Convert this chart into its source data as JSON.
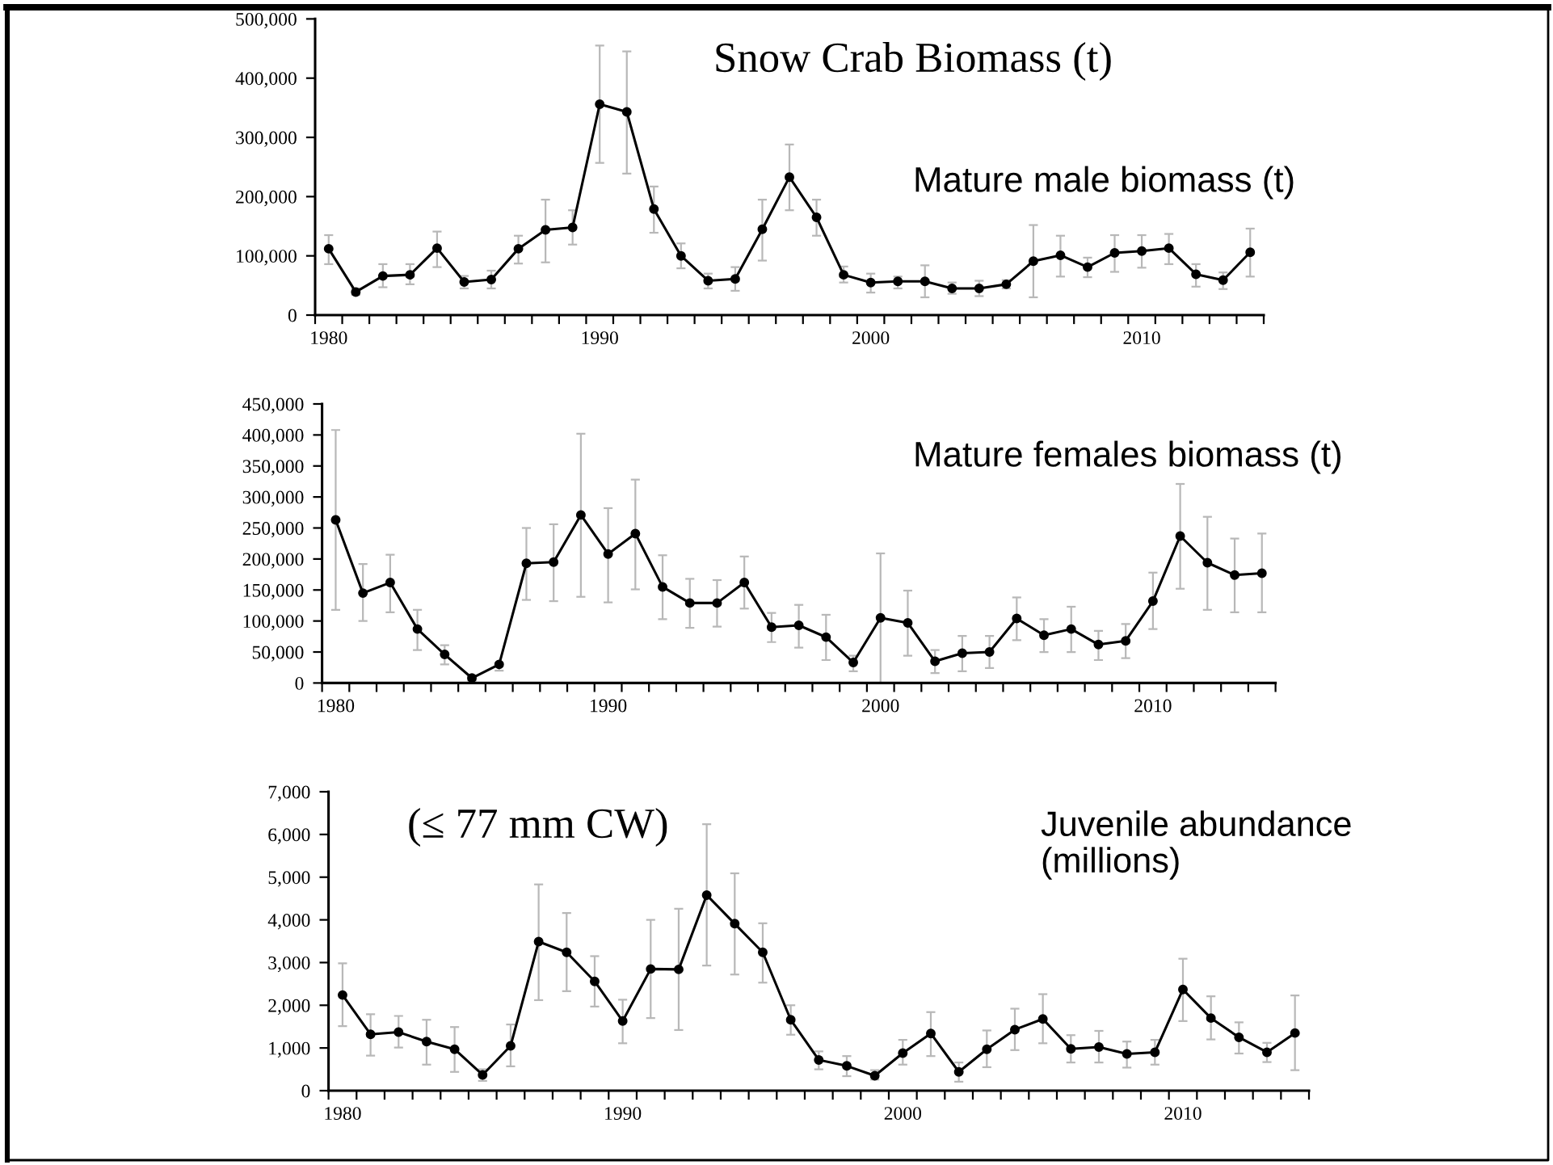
{
  "chart_data": [
    {
      "type": "line",
      "title": "Snow Crab Biomass (t)",
      "subtitle": "Mature male biomass (t)",
      "categories": [
        "1980",
        null,
        null,
        null,
        null,
        null,
        null,
        null,
        null,
        null,
        "1990",
        null,
        null,
        null,
        null,
        null,
        null,
        null,
        null,
        null,
        "2000",
        null,
        null,
        null,
        null,
        null,
        null,
        null,
        null,
        null,
        "2010",
        null,
        null,
        null,
        null
      ],
      "series": [
        {
          "color": "#000000",
          "values": [
            112000,
            39000,
            66000,
            68000,
            113000,
            56000,
            60000,
            112000,
            144000,
            148000,
            356000,
            343000,
            179000,
            100000,
            58000,
            61000,
            145000,
            233000,
            165000,
            68000,
            55000,
            57000,
            57000,
            45000,
            45000,
            52000,
            91000,
            101000,
            81000,
            105000,
            108000,
            113000,
            69000,
            59000,
            106000
          ],
          "errors": [
            [
              86000,
              135000
            ],
            [
              34000,
              45000
            ],
            [
              47000,
              86000
            ],
            [
              52000,
              86000
            ],
            [
              81000,
              141000
            ],
            [
              45000,
              66000
            ],
            [
              45000,
              75000
            ],
            [
              87000,
              134000
            ],
            [
              89000,
              195000
            ],
            [
              119000,
              177000
            ],
            [
              257000,
              455000
            ],
            [
              239000,
              445000
            ],
            [
              139000,
              217000
            ],
            [
              79000,
              121000
            ],
            [
              45000,
              70000
            ],
            [
              41000,
              81000
            ],
            [
              92000,
              195000
            ],
            [
              177000,
              288000
            ],
            [
              134000,
              195000
            ],
            [
              55000,
              82000
            ],
            [
              38000,
              70000
            ],
            [
              45000,
              65000
            ],
            [
              30000,
              84000
            ],
            [
              36000,
              55000
            ],
            [
              32000,
              58000
            ],
            [
              45000,
              59000
            ],
            [
              30000,
              152000
            ],
            [
              65000,
              134000
            ],
            [
              64000,
              97000
            ],
            [
              73000,
              135000
            ],
            [
              80000,
              135000
            ],
            [
              86000,
              137000
            ],
            [
              48000,
              86000
            ],
            [
              44000,
              72000
            ],
            [
              65000,
              146000
            ]
          ]
        }
      ],
      "ylim": [
        0,
        500000
      ],
      "yticks": [
        0,
        {
          "value": 100000,
          "label": "100,000"
        },
        {
          "value": 200000,
          "label": "200,000"
        },
        {
          "value": 300000,
          "label": "300,000"
        },
        {
          "value": 400000,
          "label": "400,000"
        },
        {
          "value": 500000,
          "label": "500,000"
        }
      ],
      "marker": "circle",
      "line_style": "solid"
    },
    {
      "type": "line",
      "title": "Mature females biomass (t)",
      "categories": [
        "1980",
        null,
        null,
        null,
        null,
        null,
        null,
        null,
        null,
        null,
        "1990",
        null,
        null,
        null,
        null,
        null,
        null,
        null,
        null,
        null,
        "2000",
        null,
        null,
        null,
        null,
        null,
        null,
        null,
        null,
        null,
        "2010",
        null,
        null,
        null,
        null
      ],
      "series": [
        {
          "color": "#000000",
          "values": [
            263000,
            145000,
            162000,
            87000,
            46000,
            8000,
            30000,
            193000,
            195000,
            271000,
            208000,
            241000,
            155000,
            129000,
            129000,
            162000,
            90000,
            93000,
            74000,
            33000,
            105000,
            97000,
            35000,
            48000,
            50000,
            104000,
            77000,
            87000,
            62000,
            68000,
            132000,
            237000,
            194000,
            174000,
            177000
          ],
          "errors": [
            [
              118000,
              408000
            ],
            [
              100000,
              192000
            ],
            [
              114000,
              207000
            ],
            [
              53000,
              118000
            ],
            [
              30000,
              61000
            ],
            [
              4000,
              12000
            ],
            [
              20000,
              33000
            ],
            [
              134000,
              250000
            ],
            [
              132000,
              256000
            ],
            [
              139000,
              402000
            ],
            [
              130000,
              282000
            ],
            [
              151000,
              328000
            ],
            [
              103000,
              206000
            ],
            [
              89000,
              168000
            ],
            [
              91000,
              166000
            ],
            [
              120000,
              204000
            ],
            [
              66000,
              113000
            ],
            [
              57000,
              126000
            ],
            [
              37000,
              110000
            ],
            [
              19000,
              44000
            ],
            [
              0,
              209000
            ],
            [
              44000,
              149000
            ],
            [
              16000,
              53000
            ],
            [
              19000,
              76000
            ],
            [
              24000,
              76000
            ],
            [
              69000,
              138000
            ],
            [
              50000,
              103000
            ],
            [
              50000,
              123000
            ],
            [
              37000,
              84000
            ],
            [
              40000,
              95000
            ],
            [
              87000,
              178000
            ],
            [
              152000,
              321000
            ],
            [
              118000,
              268000
            ],
            [
              114000,
              233000
            ],
            [
              114000,
              241000
            ]
          ]
        }
      ],
      "ylim": [
        0,
        450000
      ],
      "yticks": [
        0,
        {
          "value": 50000,
          "label": "50,000"
        },
        {
          "value": 100000,
          "label": "100,000"
        },
        {
          "value": 150000,
          "label": "150,000"
        },
        {
          "value": 200000,
          "label": "200,000"
        },
        {
          "value": 250000,
          "label": "250,000"
        },
        {
          "value": 300000,
          "label": "300,000"
        },
        {
          "value": 350000,
          "label": "350,000"
        },
        {
          "value": 400000,
          "label": "400,000"
        },
        {
          "value": 450000,
          "label": "450,000"
        }
      ],
      "marker": "circle",
      "line_style": "solid"
    },
    {
      "type": "line",
      "title": "Juvenile abundance\n(millions)",
      "annotations": [
        "(≤ 77 mm CW)"
      ],
      "categories": [
        "1980",
        null,
        null,
        null,
        null,
        null,
        null,
        null,
        null,
        null,
        "1990",
        null,
        null,
        null,
        null,
        null,
        null,
        null,
        null,
        null,
        "2000",
        null,
        null,
        null,
        null,
        null,
        null,
        null,
        null,
        null,
        "2010",
        null,
        null,
        null,
        null
      ],
      "series": [
        {
          "color": "#000000",
          "values": [
            2240,
            1320,
            1370,
            1150,
            970,
            370,
            1050,
            3490,
            3240,
            2560,
            1630,
            2850,
            2840,
            4580,
            3910,
            3240,
            1660,
            720,
            580,
            350,
            880,
            1340,
            440,
            970,
            1430,
            1680,
            980,
            1020,
            860,
            900,
            2370,
            1700,
            1250,
            900,
            1350
          ],
          "errors": [
            [
              1510,
              2980
            ],
            [
              820,
              1790
            ],
            [
              1010,
              1750
            ],
            [
              610,
              1660
            ],
            [
              440,
              1490
            ],
            [
              230,
              500
            ],
            [
              570,
              1550
            ],
            [
              2120,
              4830
            ],
            [
              2330,
              4160
            ],
            [
              1970,
              3150
            ],
            [
              1110,
              2130
            ],
            [
              1700,
              4000
            ],
            [
              1420,
              4260
            ],
            [
              2930,
              6240
            ],
            [
              2720,
              5090
            ],
            [
              2530,
              3920
            ],
            [
              1310,
              2000
            ],
            [
              500,
              920
            ],
            [
              340,
              810
            ],
            [
              260,
              480
            ],
            [
              610,
              1190
            ],
            [
              810,
              1840
            ],
            [
              210,
              660
            ],
            [
              550,
              1410
            ],
            [
              950,
              1920
            ],
            [
              1110,
              2260
            ],
            [
              660,
              1300
            ],
            [
              660,
              1400
            ],
            [
              540,
              1150
            ],
            [
              610,
              1190
            ],
            [
              1630,
              3090
            ],
            [
              1200,
              2210
            ],
            [
              870,
              1600
            ],
            [
              670,
              1120
            ],
            [
              480,
              2230
            ]
          ]
        }
      ],
      "ylim": [
        0,
        7000
      ],
      "yticks": [
        0,
        {
          "value": 1000,
          "label": "1,000"
        },
        {
          "value": 2000,
          "label": "2,000"
        },
        {
          "value": 3000,
          "label": "3,000"
        },
        {
          "value": 4000,
          "label": "4,000"
        },
        {
          "value": 5000,
          "label": "5,000"
        },
        {
          "value": 6000,
          "label": "6,000"
        },
        {
          "value": 7000,
          "label": "7,000"
        }
      ],
      "marker": "circle",
      "line_style": "solid"
    }
  ]
}
